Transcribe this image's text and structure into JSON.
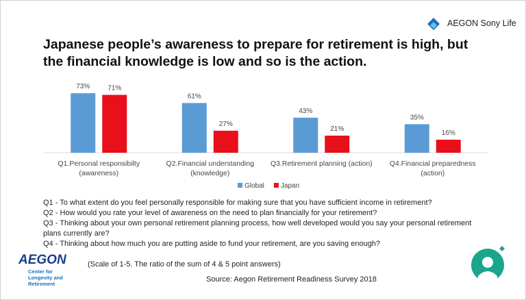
{
  "brand": "AEGON Sony Life",
  "chart_data": {
    "type": "bar",
    "title": "Japanese people’s awareness to prepare for retirement is high, but the financial knowledge is low and so is the action.",
    "categories": [
      "Q1.Personal responsibilty (awareness)",
      "Q2.Financial understanding (knowledge)",
      "Q3.Retirement planning (action)",
      "Q4.Financial preparedness (action)"
    ],
    "series": [
      {
        "name": "Global",
        "color": "#5b9bd5",
        "values": [
          73,
          61,
          43,
          35
        ],
        "value_labels": [
          "73%",
          "61%",
          "43%",
          "35%"
        ]
      },
      {
        "name": "Japan",
        "color": "#e8101a",
        "values": [
          71,
          27,
          21,
          16
        ],
        "value_labels": [
          "71%",
          "27%",
          "21%",
          "16%"
        ]
      }
    ],
    "legend": "bottom"
  },
  "questions": [
    "Q1 - To what extent do you feel personally responsible for making sure that you have sufficient income in retirement?",
    "Q2 - How would you rate your level of awareness on the need to plan financially for your retirement?",
    "Q3 - Thinking about your own personal retirement planning process, how well developed would you say your personal retirement plans currently are?",
    "Q4 - Thinking about how much you are putting aside to fund your retirement, are you saving enough?"
  ],
  "scale_note": "(Scale of 1-5. The ratio of the sum of 4 & 5 point answers)",
  "source": "Source: Aegon Retirement Readiness Survey 2018",
  "footer_logo": {
    "name": "AEGON",
    "subtitle": "Center for Longevity and Retirement"
  }
}
